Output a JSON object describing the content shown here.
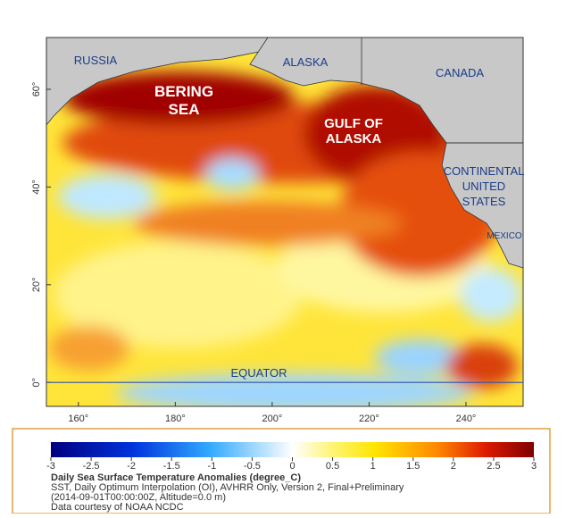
{
  "map": {
    "labels": {
      "russia": "RUSSIA",
      "alaska": "ALASKA",
      "canada": "CANADA",
      "bering": [
        "BERING",
        "SEA"
      ],
      "gulf": [
        "GULF OF",
        "ALASKA"
      ],
      "us": [
        "CONTINENTAL",
        "UNITED",
        "STATES"
      ],
      "mexico": "MEXICO",
      "equator": "EQUATOR"
    },
    "xlim": [
      153.4,
      251.8
    ],
    "ylim": [
      -4.9,
      70.6
    ],
    "xticks": [
      {
        "value": 160,
        "label": "160°"
      },
      {
        "value": 180,
        "label": "180°"
      },
      {
        "value": 200,
        "label": "200°"
      },
      {
        "value": 220,
        "label": "220°"
      },
      {
        "value": 240,
        "label": "240°"
      }
    ],
    "yticks": [
      {
        "value": 0,
        "label": "0°"
      },
      {
        "value": 20,
        "label": "20°"
      },
      {
        "value": 40,
        "label": "40°"
      },
      {
        "value": 60,
        "label": "60°"
      }
    ]
  },
  "colorbar": {
    "lim": [
      -3,
      3
    ],
    "ticks": [
      -3,
      -2.5,
      -2,
      -1.5,
      -1,
      -0.5,
      0,
      0.5,
      1,
      1.5,
      2,
      2.5,
      3
    ],
    "title": "Daily Sea Surface Temperature Anomalies (degree_C)",
    "lines": [
      "SST, Daily Optimum Interpolation (OI), AVHRR Only, Version 2, Final+Preliminary",
      "(2014-09-01T00:00:00Z, Altitude=0.0 m)",
      "Data courtesy of NOAA NCDC"
    ]
  }
}
